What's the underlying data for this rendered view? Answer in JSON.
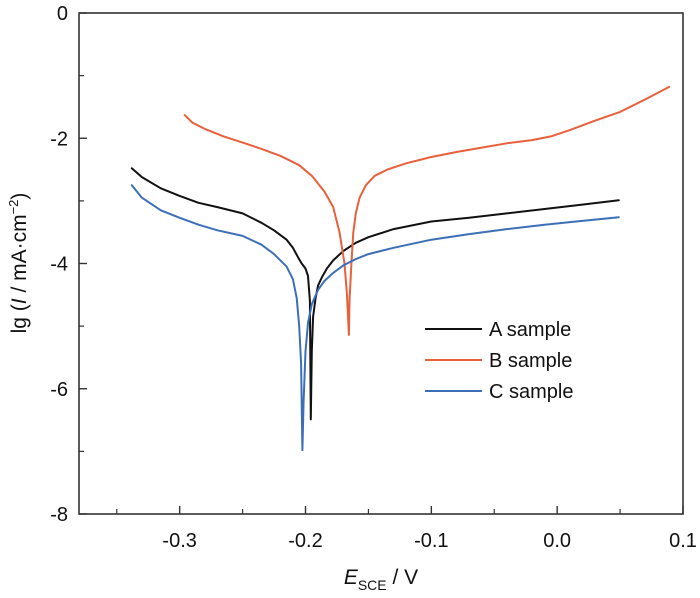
{
  "chart_data": {
    "type": "line",
    "title": "",
    "xlabel_main": "E",
    "xlabel_sub": "SCE",
    "xlabel_unit": " / V",
    "ylabel_prefix": "lg (",
    "ylabel_var": "I",
    "ylabel_unit": " / mA·cm",
    "ylabel_exp": "−2",
    "ylabel_suffix": ")",
    "xlim": [
      -0.38,
      0.1
    ],
    "ylim": [
      -8,
      0
    ],
    "x_ticks": [
      -0.3,
      -0.2,
      -0.1,
      0.0,
      0.1
    ],
    "x_tick_labels": [
      "-0.3",
      "-0.2",
      "-0.1",
      "0.0",
      "0.1"
    ],
    "x_minor_ticks": [
      -0.35,
      -0.25,
      -0.15,
      -0.05,
      0.05
    ],
    "y_ticks": [
      0,
      -2,
      -4,
      -6,
      -8
    ],
    "y_tick_labels": [
      "0",
      "-2",
      "-4",
      "-6",
      "-8"
    ],
    "y_minor_ticks": [
      -1,
      -3,
      -5,
      -7
    ],
    "grid": false,
    "legend_position": "center-right",
    "series": [
      {
        "name": "A sample",
        "color": "#111111",
        "x": [
          -0.338,
          -0.33,
          -0.315,
          -0.3,
          -0.285,
          -0.27,
          -0.25,
          -0.235,
          -0.225,
          -0.215,
          -0.21,
          -0.206,
          -0.203,
          -0.2,
          -0.198,
          -0.1965,
          -0.1958,
          -0.195,
          -0.194,
          -0.192,
          -0.19,
          -0.187,
          -0.183,
          -0.178,
          -0.17,
          -0.16,
          -0.15,
          -0.13,
          -0.1,
          -0.07,
          -0.04,
          -0.01,
          0.02,
          0.049
        ],
        "y": [
          -2.48,
          -2.62,
          -2.8,
          -2.92,
          -3.03,
          -3.1,
          -3.2,
          -3.35,
          -3.47,
          -3.62,
          -3.75,
          -3.9,
          -4.0,
          -4.08,
          -4.2,
          -4.6,
          -6.49,
          -5.4,
          -4.85,
          -4.55,
          -4.35,
          -4.22,
          -4.08,
          -3.95,
          -3.8,
          -3.67,
          -3.58,
          -3.45,
          -3.33,
          -3.27,
          -3.2,
          -3.13,
          -3.06,
          -2.99
        ]
      },
      {
        "name": "B sample",
        "color": "#e8603c",
        "x": [
          -0.296,
          -0.29,
          -0.28,
          -0.265,
          -0.25,
          -0.235,
          -0.22,
          -0.205,
          -0.195,
          -0.185,
          -0.178,
          -0.173,
          -0.169,
          -0.167,
          -0.1655,
          -0.165,
          -0.1635,
          -0.162,
          -0.16,
          -0.157,
          -0.152,
          -0.145,
          -0.135,
          -0.12,
          -0.1,
          -0.08,
          -0.06,
          -0.04,
          -0.02,
          -0.005,
          0.01,
          0.03,
          0.05,
          0.07,
          0.089
        ],
        "y": [
          -1.63,
          -1.75,
          -1.85,
          -1.97,
          -2.07,
          -2.17,
          -2.28,
          -2.43,
          -2.6,
          -2.85,
          -3.1,
          -3.5,
          -4.0,
          -4.5,
          -5.14,
          -4.6,
          -4.0,
          -3.5,
          -3.2,
          -2.95,
          -2.75,
          -2.6,
          -2.5,
          -2.4,
          -2.3,
          -2.22,
          -2.15,
          -2.08,
          -2.03,
          -1.97,
          -1.87,
          -1.72,
          -1.58,
          -1.38,
          -1.18
        ]
      },
      {
        "name": "C sample",
        "color": "#3d6fb8",
        "x": [
          -0.338,
          -0.33,
          -0.315,
          -0.3,
          -0.285,
          -0.27,
          -0.25,
          -0.235,
          -0.225,
          -0.215,
          -0.21,
          -0.207,
          -0.205,
          -0.2035,
          -0.2025,
          -0.2015,
          -0.2,
          -0.198,
          -0.195,
          -0.19,
          -0.185,
          -0.178,
          -0.17,
          -0.16,
          -0.15,
          -0.13,
          -0.1,
          -0.07,
          -0.04,
          -0.01,
          0.02,
          0.049
        ],
        "y": [
          -2.75,
          -2.95,
          -3.15,
          -3.27,
          -3.38,
          -3.47,
          -3.56,
          -3.7,
          -3.85,
          -4.05,
          -4.25,
          -4.55,
          -5.0,
          -5.6,
          -6.98,
          -6.2,
          -5.4,
          -4.95,
          -4.65,
          -4.42,
          -4.28,
          -4.15,
          -4.03,
          -3.93,
          -3.85,
          -3.75,
          -3.62,
          -3.53,
          -3.45,
          -3.38,
          -3.32,
          -3.26
        ]
      }
    ]
  }
}
